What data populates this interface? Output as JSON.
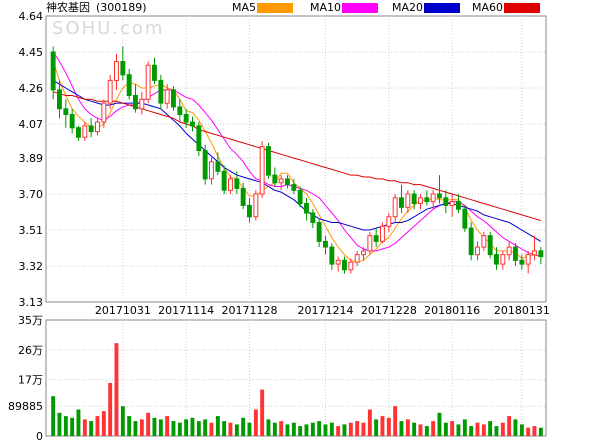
{
  "header": {
    "stock_name": "神农基因",
    "stock_code": "(300189)",
    "watermark": "SOHU.com"
  },
  "legend": [
    {
      "label": "MA5",
      "color": "#ff9900"
    },
    {
      "label": "MA10",
      "color": "#ff00ff"
    },
    {
      "label": "MA20",
      "color": "#0000cc"
    },
    {
      "label": "MA60",
      "color": "#dd0000"
    }
  ],
  "colors": {
    "up": "#ff3333",
    "down": "#009900",
    "grid": "#cccccc",
    "frame": "#888888"
  },
  "chart_data": [
    {
      "type": "candlestick",
      "yticks": [
        "4.64",
        "4.45",
        "4.26",
        "4.07",
        "3.89",
        "3.70",
        "3.51",
        "3.32",
        "3.13"
      ],
      "ylim": [
        3.13,
        4.64
      ],
      "xticks": [
        {
          "label": "20171031",
          "index": 11
        },
        {
          "label": "20171114",
          "index": 21
        },
        {
          "label": "20171128",
          "index": 31
        },
        {
          "label": "20171214",
          "index": 43
        },
        {
          "label": "20171228",
          "index": 53
        },
        {
          "label": "20180116",
          "index": 63
        },
        {
          "label": "20180131",
          "index": 74
        }
      ],
      "ohlc": [
        [
          4.45,
          4.48,
          4.2,
          4.25
        ],
        [
          4.25,
          4.3,
          4.1,
          4.15
        ],
        [
          4.15,
          4.2,
          4.05,
          4.12
        ],
        [
          4.12,
          4.15,
          4.02,
          4.05
        ],
        [
          4.05,
          4.06,
          3.98,
          4.0
        ],
        [
          4.0,
          4.08,
          3.98,
          4.06
        ],
        [
          4.06,
          4.1,
          4.0,
          4.03
        ],
        [
          4.03,
          4.1,
          4.01,
          4.08
        ],
        [
          4.08,
          4.2,
          4.05,
          4.18
        ],
        [
          4.18,
          4.33,
          4.15,
          4.3
        ],
        [
          4.3,
          4.44,
          4.25,
          4.4
        ],
        [
          4.4,
          4.48,
          4.3,
          4.33
        ],
        [
          4.33,
          4.36,
          4.2,
          4.22
        ],
        [
          4.22,
          4.28,
          4.13,
          4.15
        ],
        [
          4.15,
          4.24,
          4.12,
          4.2
        ],
        [
          4.2,
          4.4,
          4.18,
          4.38
        ],
        [
          4.38,
          4.42,
          4.28,
          4.3
        ],
        [
          4.3,
          4.33,
          4.15,
          4.18
        ],
        [
          4.18,
          4.28,
          4.15,
          4.25
        ],
        [
          4.25,
          4.27,
          4.14,
          4.16
        ],
        [
          4.16,
          4.2,
          4.08,
          4.12
        ],
        [
          4.12,
          4.15,
          4.05,
          4.08
        ],
        [
          4.08,
          4.11,
          4.03,
          4.06
        ],
        [
          4.06,
          4.08,
          3.9,
          3.93
        ],
        [
          3.93,
          3.96,
          3.75,
          3.78
        ],
        [
          3.78,
          3.9,
          3.75,
          3.87
        ],
        [
          3.87,
          3.92,
          3.8,
          3.82
        ],
        [
          3.82,
          3.85,
          3.7,
          3.72
        ],
        [
          3.72,
          3.8,
          3.7,
          3.78
        ],
        [
          3.78,
          3.82,
          3.7,
          3.73
        ],
        [
          3.73,
          3.76,
          3.62,
          3.64
        ],
        [
          3.64,
          3.68,
          3.55,
          3.58
        ],
        [
          3.58,
          3.72,
          3.56,
          3.7
        ],
        [
          3.7,
          3.98,
          3.68,
          3.95
        ],
        [
          3.95,
          3.97,
          3.78,
          3.8
        ],
        [
          3.8,
          3.84,
          3.74,
          3.76
        ],
        [
          3.76,
          3.8,
          3.72,
          3.78
        ],
        [
          3.78,
          3.8,
          3.73,
          3.75
        ],
        [
          3.75,
          3.78,
          3.7,
          3.72
        ],
        [
          3.72,
          3.74,
          3.63,
          3.65
        ],
        [
          3.65,
          3.68,
          3.56,
          3.6
        ],
        [
          3.6,
          3.62,
          3.52,
          3.55
        ],
        [
          3.55,
          3.57,
          3.42,
          3.45
        ],
        [
          3.45,
          3.48,
          3.38,
          3.42
        ],
        [
          3.42,
          3.44,
          3.3,
          3.33
        ],
        [
          3.33,
          3.37,
          3.29,
          3.35
        ],
        [
          3.35,
          3.37,
          3.28,
          3.3
        ],
        [
          3.3,
          3.36,
          3.28,
          3.34
        ],
        [
          3.34,
          3.4,
          3.32,
          3.38
        ],
        [
          3.38,
          3.42,
          3.35,
          3.4
        ],
        [
          3.4,
          3.5,
          3.38,
          3.48
        ],
        [
          3.48,
          3.52,
          3.42,
          3.45
        ],
        [
          3.45,
          3.55,
          3.44,
          3.53
        ],
        [
          3.53,
          3.6,
          3.5,
          3.58
        ],
        [
          3.58,
          3.7,
          3.55,
          3.68
        ],
        [
          3.68,
          3.75,
          3.6,
          3.63
        ],
        [
          3.63,
          3.72,
          3.6,
          3.7
        ],
        [
          3.7,
          3.72,
          3.62,
          3.65
        ],
        [
          3.65,
          3.7,
          3.62,
          3.68
        ],
        [
          3.68,
          3.72,
          3.64,
          3.66
        ],
        [
          3.66,
          3.72,
          3.62,
          3.7
        ],
        [
          3.7,
          3.8,
          3.65,
          3.68
        ],
        [
          3.68,
          3.72,
          3.6,
          3.64
        ],
        [
          3.64,
          3.7,
          3.58,
          3.66
        ],
        [
          3.66,
          3.7,
          3.6,
          3.62
        ],
        [
          3.62,
          3.64,
          3.5,
          3.52
        ],
        [
          3.52,
          3.55,
          3.35,
          3.38
        ],
        [
          3.38,
          3.45,
          3.35,
          3.42
        ],
        [
          3.42,
          3.5,
          3.4,
          3.48
        ],
        [
          3.48,
          3.5,
          3.36,
          3.38
        ],
        [
          3.38,
          3.42,
          3.3,
          3.33
        ],
        [
          3.33,
          3.4,
          3.3,
          3.38
        ],
        [
          3.38,
          3.45,
          3.35,
          3.42
        ],
        [
          3.42,
          3.44,
          3.32,
          3.35
        ],
        [
          3.35,
          3.38,
          3.3,
          3.33
        ],
        [
          3.33,
          3.4,
          3.28,
          3.38
        ],
        [
          3.38,
          3.48,
          3.35,
          3.4
        ],
        [
          3.4,
          3.42,
          3.33,
          3.37
        ]
      ],
      "ma5": [
        4.4,
        4.3,
        4.22,
        4.15,
        4.11,
        4.08,
        4.05,
        4.05,
        4.07,
        4.13,
        4.2,
        4.26,
        4.29,
        4.28,
        4.26,
        4.26,
        4.27,
        4.28,
        4.26,
        4.25,
        4.2,
        4.14,
        4.13,
        4.09,
        4.03,
        3.97,
        3.9,
        3.84,
        3.79,
        3.78,
        3.73,
        3.69,
        3.69,
        3.72,
        3.74,
        3.76,
        3.81,
        3.81,
        3.76,
        3.73,
        3.7,
        3.65,
        3.59,
        3.53,
        3.47,
        3.42,
        3.38,
        3.35,
        3.34,
        3.35,
        3.38,
        3.41,
        3.45,
        3.47,
        3.52,
        3.57,
        3.61,
        3.64,
        3.67,
        3.66,
        3.68,
        3.67,
        3.67,
        3.67,
        3.67,
        3.63,
        3.56,
        3.51,
        3.47,
        3.44,
        3.4,
        3.4,
        3.4,
        3.39,
        3.36,
        3.37,
        3.38,
        3.37
      ],
      "ma10": [
        4.45,
        4.4,
        4.34,
        4.27,
        4.2,
        4.15,
        4.12,
        4.1,
        4.09,
        4.11,
        4.14,
        4.16,
        4.17,
        4.17,
        4.19,
        4.21,
        4.23,
        4.25,
        4.25,
        4.25,
        4.23,
        4.21,
        4.2,
        4.17,
        4.13,
        4.09,
        4.04,
        3.99,
        3.94,
        3.91,
        3.87,
        3.82,
        3.78,
        3.77,
        3.75,
        3.74,
        3.74,
        3.75,
        3.74,
        3.73,
        3.72,
        3.7,
        3.68,
        3.64,
        3.6,
        3.56,
        3.51,
        3.47,
        3.43,
        3.41,
        3.4,
        3.4,
        3.41,
        3.42,
        3.44,
        3.47,
        3.5,
        3.53,
        3.56,
        3.59,
        3.62,
        3.64,
        3.65,
        3.66,
        3.66,
        3.64,
        3.61,
        3.58,
        3.56,
        3.53,
        3.5,
        3.47,
        3.45,
        3.43,
        3.41,
        3.39,
        3.38,
        3.37
      ],
      "ma20": [
        4.3,
        4.28,
        4.26,
        4.24,
        4.22,
        4.2,
        4.19,
        4.18,
        4.17,
        4.17,
        4.18,
        4.18,
        4.18,
        4.18,
        4.18,
        4.17,
        4.16,
        4.15,
        4.12,
        4.09,
        4.06,
        4.02,
        3.99,
        3.96,
        3.93,
        3.9,
        3.87,
        3.84,
        3.82,
        3.8,
        3.79,
        3.78,
        3.77,
        3.76,
        3.74,
        3.72,
        3.71,
        3.69,
        3.67,
        3.64,
        3.61,
        3.59,
        3.57,
        3.56,
        3.55,
        3.55,
        3.54,
        3.53,
        3.52,
        3.51,
        3.51,
        3.52,
        3.53,
        3.54,
        3.55,
        3.55,
        3.56,
        3.58,
        3.6,
        3.62,
        3.63,
        3.64,
        3.65,
        3.65,
        3.64,
        3.63,
        3.62,
        3.61,
        3.59,
        3.58,
        3.57,
        3.56,
        3.55,
        3.53,
        3.51,
        3.49,
        3.47,
        3.45
      ],
      "ma60": [
        4.24,
        4.23,
        4.22,
        4.22,
        4.21,
        4.2,
        4.2,
        4.19,
        4.19,
        4.19,
        4.19,
        4.18,
        4.17,
        4.16,
        4.15,
        4.14,
        4.13,
        4.12,
        4.11,
        4.1,
        4.08,
        4.07,
        4.06,
        4.04,
        4.03,
        4.02,
        4.01,
        4.0,
        3.99,
        3.98,
        3.97,
        3.96,
        3.95,
        3.94,
        3.93,
        3.92,
        3.91,
        3.9,
        3.89,
        3.88,
        3.87,
        3.86,
        3.85,
        3.84,
        3.83,
        3.82,
        3.81,
        3.8,
        3.8,
        3.79,
        3.79,
        3.78,
        3.78,
        3.77,
        3.77,
        3.76,
        3.76,
        3.75,
        3.75,
        3.74,
        3.73,
        3.72,
        3.71,
        3.7,
        3.69,
        3.68,
        3.67,
        3.66,
        3.65,
        3.64,
        3.63,
        3.62,
        3.61,
        3.6,
        3.59,
        3.58,
        3.57,
        3.56
      ]
    },
    {
      "type": "bar",
      "yticks": [
        "35万",
        "26万",
        "17万",
        "89885",
        "0"
      ],
      "ylim": [
        0,
        350000
      ],
      "volume": [
        120000,
        70000,
        60000,
        55000,
        80000,
        50000,
        45000,
        60000,
        75000,
        160000,
        280000,
        90000,
        60000,
        45000,
        50000,
        70000,
        55000,
        50000,
        60000,
        45000,
        40000,
        50000,
        55000,
        45000,
        50000,
        40000,
        60000,
        45000,
        40000,
        35000,
        55000,
        40000,
        80000,
        140000,
        50000,
        40000,
        45000,
        35000,
        40000,
        30000,
        35000,
        40000,
        45000,
        35000,
        40000,
        30000,
        35000,
        40000,
        45000,
        40000,
        80000,
        50000,
        60000,
        55000,
        90000,
        45000,
        50000,
        40000,
        35000,
        30000,
        45000,
        70000,
        40000,
        45000,
        35000,
        50000,
        30000,
        40000,
        35000,
        45000,
        30000,
        40000,
        60000,
        50000,
        35000,
        25000,
        30000,
        25000
      ]
    }
  ]
}
